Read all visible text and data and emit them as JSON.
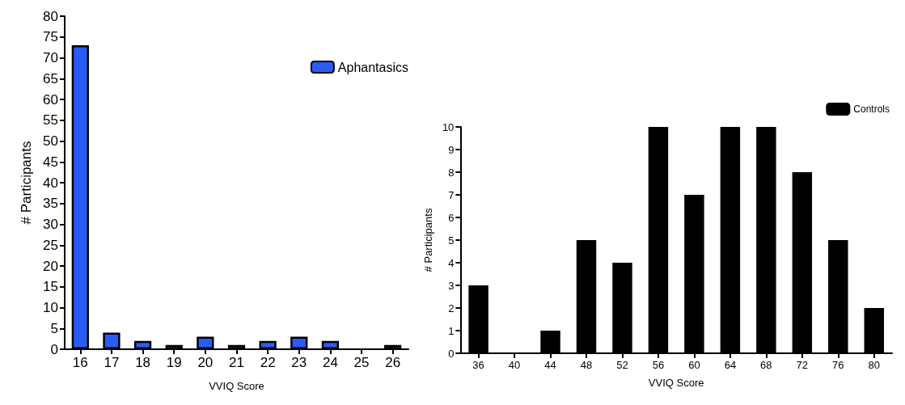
{
  "chart_data": [
    {
      "type": "bar",
      "xlabel": "VVIQ Score",
      "ylabel": "# Participants",
      "categories": [
        "16",
        "17",
        "18",
        "19",
        "20",
        "21",
        "22",
        "23",
        "24",
        "25",
        "26"
      ],
      "series": [
        {
          "name": "Aphantasics",
          "color": "#2a5cf5",
          "values": [
            73,
            4,
            2,
            1,
            3,
            1,
            2,
            3,
            2,
            0,
            1
          ]
        }
      ],
      "ylim": [
        0,
        80
      ],
      "yticks": [
        0,
        5,
        10,
        15,
        20,
        25,
        30,
        35,
        40,
        45,
        50,
        55,
        60,
        65,
        70,
        75,
        80
      ],
      "legend": "top right"
    },
    {
      "type": "bar",
      "xlabel": "VVIQ Score",
      "ylabel": "# Participants",
      "categories": [
        "36",
        "40",
        "44",
        "48",
        "52",
        "56",
        "60",
        "64",
        "68",
        "72",
        "76",
        "80"
      ],
      "series": [
        {
          "name": "Controls",
          "color": "#000000",
          "values": [
            3,
            0,
            1,
            5,
            4,
            10,
            7,
            10,
            10,
            8,
            5,
            2
          ]
        }
      ],
      "ylim": [
        0,
        10
      ],
      "yticks": [
        0,
        1,
        2,
        3,
        4,
        5,
        6,
        7,
        8,
        9,
        10
      ],
      "legend": "top right"
    }
  ]
}
